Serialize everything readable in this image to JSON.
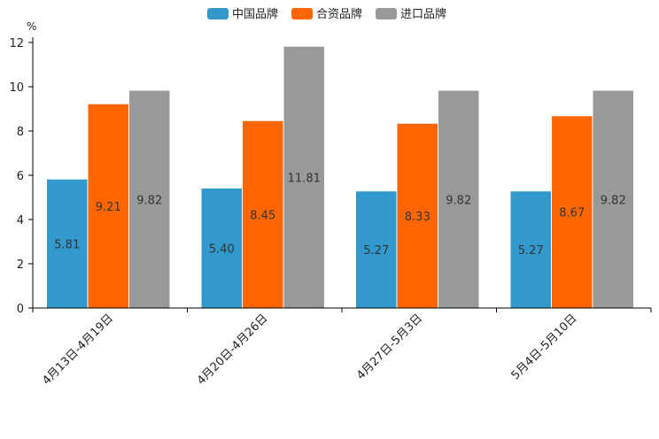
{
  "chart_data": {
    "type": "bar",
    "unit": "%",
    "categories": [
      "4月13日-4月19日",
      "4月20日-4月26日",
      "4月27日-5月3日",
      "5月4日-5月10日"
    ],
    "series": [
      {
        "name": "中国品牌",
        "color": "#3399cc",
        "values": [
          5.81,
          5.4,
          5.27,
          5.27
        ],
        "labels": [
          "5.81",
          "5.40",
          "5.27",
          "5.27"
        ]
      },
      {
        "name": "合资品牌",
        "color": "#ff6600",
        "values": [
          9.21,
          8.45,
          8.33,
          8.67
        ],
        "labels": [
          "9.21",
          "8.45",
          "8.33",
          "8.67"
        ]
      },
      {
        "name": "进口品牌",
        "color": "#999999",
        "values": [
          9.82,
          11.81,
          9.82,
          9.82
        ],
        "labels": [
          "9.82",
          "11.81",
          "9.82",
          "9.82"
        ]
      }
    ],
    "ylim": [
      0,
      12
    ],
    "yticks": [
      "0",
      "2",
      "4",
      "6",
      "8",
      "10",
      "12"
    ],
    "legend_position": "top-center",
    "grid": false
  }
}
